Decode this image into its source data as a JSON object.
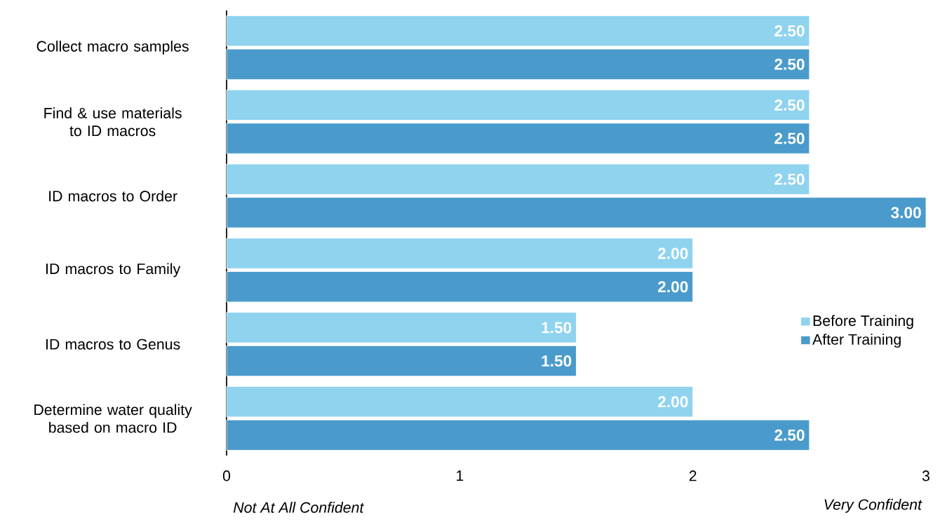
{
  "chart_data": {
    "type": "bar",
    "orientation": "horizontal",
    "categories": [
      "Collect macro samples",
      "Find & use materials to ID macros",
      "ID macros to Order",
      "ID macros to Family",
      "ID macros to Genus",
      "Determine water quality based on macro ID"
    ],
    "series": [
      {
        "name": "Before Training",
        "color": "#8fd3ef",
        "values": [
          2.5,
          2.5,
          2.5,
          2.0,
          1.5,
          2.0
        ],
        "value_labels": [
          "2.50",
          "2.50",
          "2.50",
          "2.00",
          "1.50",
          "2.00"
        ]
      },
      {
        "name": "After Training",
        "color": "#4a9bcb",
        "values": [
          2.5,
          2.5,
          3.0,
          2.0,
          1.5,
          2.5
        ],
        "value_labels": [
          "2.50",
          "2.50",
          "3.00",
          "2.00",
          "1.50",
          "2.50"
        ]
      }
    ],
    "xlim": [
      0,
      3
    ],
    "xticks": [
      0,
      1,
      2,
      3
    ],
    "grid": false,
    "legend": "right",
    "annotations": [
      "*Not At All Confident*",
      "*Very Confident*"
    ]
  }
}
